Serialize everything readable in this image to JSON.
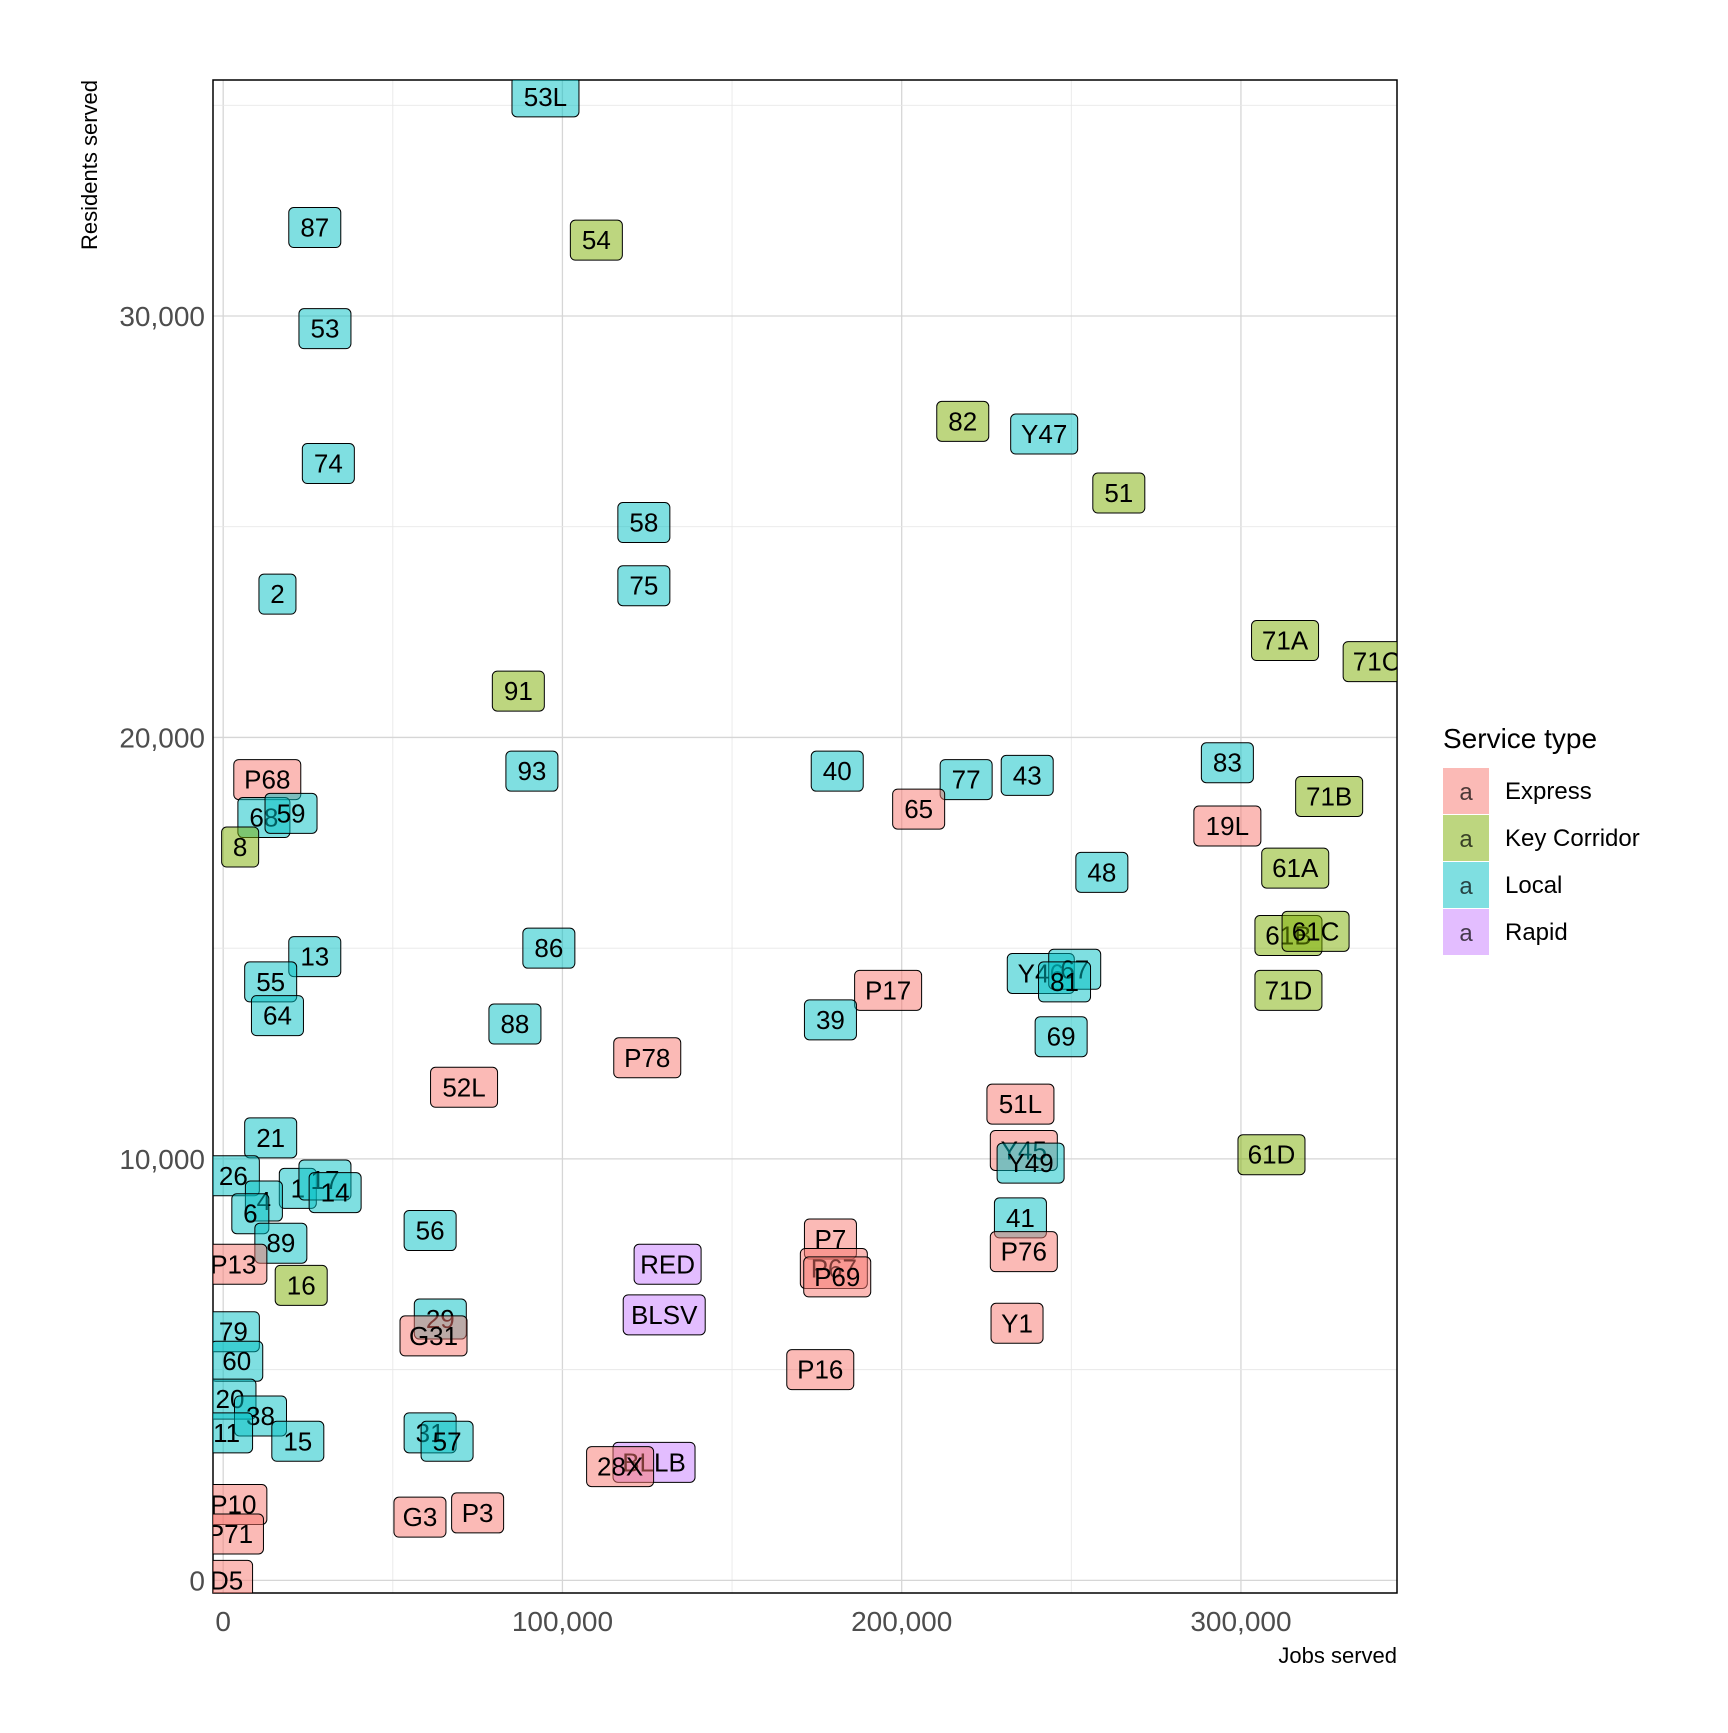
{
  "chart_data": {
    "type": "scatter",
    "subtype": "label-boxes",
    "title": "",
    "xlabel": "Jobs served",
    "ylabel": "Residents served",
    "xlim": [
      -3000,
      346000
    ],
    "ylim": [
      -300,
      35600
    ],
    "x_ticks": [
      0,
      100000,
      200000,
      300000
    ],
    "x_tick_labels": [
      "0",
      "100,000",
      "200,000",
      "300,000"
    ],
    "y_ticks": [
      0,
      10000,
      20000,
      30000
    ],
    "y_tick_labels": [
      "0",
      "10,000",
      "20,000",
      "30,000"
    ],
    "grid": true,
    "legend": {
      "title": "Service type",
      "position": "right",
      "key_glyph": "a",
      "items": [
        {
          "name": "Express",
          "color": "#F8766D"
        },
        {
          "name": "Key Corridor",
          "color": "#7CAE00"
        },
        {
          "name": "Local",
          "color": "#00BFC4"
        },
        {
          "name": "Rapid",
          "color": "#C77CFF"
        }
      ]
    },
    "points": [
      {
        "label": "53L",
        "type": "Local",
        "x": 95000,
        "y": 35200
      },
      {
        "label": "87",
        "type": "Local",
        "x": 27000,
        "y": 32100
      },
      {
        "label": "54",
        "type": "Key Corridor",
        "x": 110000,
        "y": 31800
      },
      {
        "label": "53",
        "type": "Local",
        "x": 30000,
        "y": 29700
      },
      {
        "label": "82",
        "type": "Key Corridor",
        "x": 218000,
        "y": 27500
      },
      {
        "label": "Y47",
        "type": "Local",
        "x": 242000,
        "y": 27200
      },
      {
        "label": "74",
        "type": "Local",
        "x": 31000,
        "y": 26500
      },
      {
        "label": "51",
        "type": "Key Corridor",
        "x": 264000,
        "y": 25800
      },
      {
        "label": "58",
        "type": "Local",
        "x": 124000,
        "y": 25100
      },
      {
        "label": "75",
        "type": "Local",
        "x": 124000,
        "y": 23600
      },
      {
        "label": "2",
        "type": "Local",
        "x": 16000,
        "y": 23400
      },
      {
        "label": "71A",
        "type": "Key Corridor",
        "x": 313000,
        "y": 22300
      },
      {
        "label": "71C",
        "type": "Key Corridor",
        "x": 340000,
        "y": 21800
      },
      {
        "label": "91",
        "type": "Key Corridor",
        "x": 87000,
        "y": 21100
      },
      {
        "label": "P68",
        "type": "Express",
        "x": 13000,
        "y": 19000
      },
      {
        "label": "93",
        "type": "Local",
        "x": 91000,
        "y": 19200
      },
      {
        "label": "40",
        "type": "Local",
        "x": 181000,
        "y": 19200
      },
      {
        "label": "77",
        "type": "Local",
        "x": 219000,
        "y": 19000
      },
      {
        "label": "43",
        "type": "Local",
        "x": 237000,
        "y": 19100
      },
      {
        "label": "83",
        "type": "Local",
        "x": 296000,
        "y": 19400
      },
      {
        "label": "65",
        "type": "Express",
        "x": 205000,
        "y": 18300
      },
      {
        "label": "19L",
        "type": "Express",
        "x": 296000,
        "y": 17900
      },
      {
        "label": "71B",
        "type": "Key Corridor",
        "x": 326000,
        "y": 18600
      },
      {
        "label": "68",
        "type": "Local",
        "x": 12000,
        "y": 18100
      },
      {
        "label": "59",
        "type": "Local",
        "x": 20000,
        "y": 18200
      },
      {
        "label": "8",
        "type": "Key Corridor",
        "x": 5000,
        "y": 17400
      },
      {
        "label": "48",
        "type": "Local",
        "x": 259000,
        "y": 16800
      },
      {
        "label": "61A",
        "type": "Key Corridor",
        "x": 316000,
        "y": 16900
      },
      {
        "label": "61B",
        "type": "Key Corridor",
        "x": 314000,
        "y": 15300
      },
      {
        "label": "61C",
        "type": "Key Corridor",
        "x": 322000,
        "y": 15400
      },
      {
        "label": "86",
        "type": "Local",
        "x": 96000,
        "y": 15000
      },
      {
        "label": "13",
        "type": "Local",
        "x": 27000,
        "y": 14800
      },
      {
        "label": "Y46",
        "type": "Local",
        "x": 241000,
        "y": 14400
      },
      {
        "label": "67",
        "type": "Local",
        "x": 251000,
        "y": 14500
      },
      {
        "label": "81",
        "type": "Local",
        "x": 248000,
        "y": 14200
      },
      {
        "label": "P17",
        "type": "Express",
        "x": 196000,
        "y": 14000
      },
      {
        "label": "71D",
        "type": "Key Corridor",
        "x": 314000,
        "y": 14000
      },
      {
        "label": "55",
        "type": "Local",
        "x": 14000,
        "y": 14200
      },
      {
        "label": "64",
        "type": "Local",
        "x": 16000,
        "y": 13400
      },
      {
        "label": "39",
        "type": "Local",
        "x": 179000,
        "y": 13300
      },
      {
        "label": "88",
        "type": "Local",
        "x": 86000,
        "y": 13200
      },
      {
        "label": "69",
        "type": "Local",
        "x": 247000,
        "y": 12900
      },
      {
        "label": "P78",
        "type": "Express",
        "x": 125000,
        "y": 12400
      },
      {
        "label": "52L",
        "type": "Express",
        "x": 71000,
        "y": 11700
      },
      {
        "label": "51L",
        "type": "Express",
        "x": 235000,
        "y": 11300
      },
      {
        "label": "21",
        "type": "Local",
        "x": 14000,
        "y": 10500
      },
      {
        "label": "61D",
        "type": "Key Corridor",
        "x": 309000,
        "y": 10100
      },
      {
        "label": "Y45",
        "type": "Express",
        "x": 236000,
        "y": 10200
      },
      {
        "label": "Y49",
        "type": "Local",
        "x": 238000,
        "y": 9900
      },
      {
        "label": "26",
        "type": "Local",
        "x": 3000,
        "y": 9600
      },
      {
        "label": "1",
        "type": "Local",
        "x": 22000,
        "y": 9300
      },
      {
        "label": "17",
        "type": "Local",
        "x": 30000,
        "y": 9500
      },
      {
        "label": "14",
        "type": "Local",
        "x": 33000,
        "y": 9200
      },
      {
        "label": "4",
        "type": "Local",
        "x": 12000,
        "y": 9000
      },
      {
        "label": "6",
        "type": "Local",
        "x": 8000,
        "y": 8700
      },
      {
        "label": "41",
        "type": "Local",
        "x": 235000,
        "y": 8600
      },
      {
        "label": "56",
        "type": "Local",
        "x": 61000,
        "y": 8300
      },
      {
        "label": "89",
        "type": "Local",
        "x": 17000,
        "y": 8000
      },
      {
        "label": "P7",
        "type": "Express",
        "x": 179000,
        "y": 8100
      },
      {
        "label": "P76",
        "type": "Express",
        "x": 236000,
        "y": 7800
      },
      {
        "label": "P13",
        "type": "Express",
        "x": 3000,
        "y": 7500
      },
      {
        "label": "RED",
        "type": "Rapid",
        "x": 131000,
        "y": 7500
      },
      {
        "label": "P67",
        "type": "Express",
        "x": 180000,
        "y": 7400
      },
      {
        "label": "P69",
        "type": "Express",
        "x": 181000,
        "y": 7200
      },
      {
        "label": "16",
        "type": "Key Corridor",
        "x": 23000,
        "y": 7000
      },
      {
        "label": "BLSV",
        "type": "Rapid",
        "x": 130000,
        "y": 6300
      },
      {
        "label": "29",
        "type": "Local",
        "x": 64000,
        "y": 6200
      },
      {
        "label": "Y1",
        "type": "Express",
        "x": 234000,
        "y": 6100
      },
      {
        "label": "79",
        "type": "Local",
        "x": 3000,
        "y": 5900
      },
      {
        "label": "G31",
        "type": "Express",
        "x": 62000,
        "y": 5800
      },
      {
        "label": "60",
        "type": "Local",
        "x": 4000,
        "y": 5200
      },
      {
        "label": "P16",
        "type": "Express",
        "x": 176000,
        "y": 5000
      },
      {
        "label": "20",
        "type": "Local",
        "x": 2000,
        "y": 4300
      },
      {
        "label": "38",
        "type": "Local",
        "x": 11000,
        "y": 3900
      },
      {
        "label": "11",
        "type": "Local",
        "x": 1000,
        "y": 3500
      },
      {
        "label": "15",
        "type": "Local",
        "x": 22000,
        "y": 3300
      },
      {
        "label": "31",
        "type": "Local",
        "x": 61000,
        "y": 3500
      },
      {
        "label": "57",
        "type": "Local",
        "x": 66000,
        "y": 3300
      },
      {
        "label": "BLLB",
        "type": "Rapid",
        "x": 127000,
        "y": 2800
      },
      {
        "label": "28X",
        "type": "Express",
        "x": 117000,
        "y": 2700
      },
      {
        "label": "P10",
        "type": "Express",
        "x": 3000,
        "y": 1800
      },
      {
        "label": "G3",
        "type": "Express",
        "x": 58000,
        "y": 1500
      },
      {
        "label": "P3",
        "type": "Express",
        "x": 75000,
        "y": 1600
      },
      {
        "label": "P71",
        "type": "Express",
        "x": 2000,
        "y": 1100
      },
      {
        "label": "D5",
        "type": "Express",
        "x": 1000,
        "y": 0
      }
    ]
  }
}
